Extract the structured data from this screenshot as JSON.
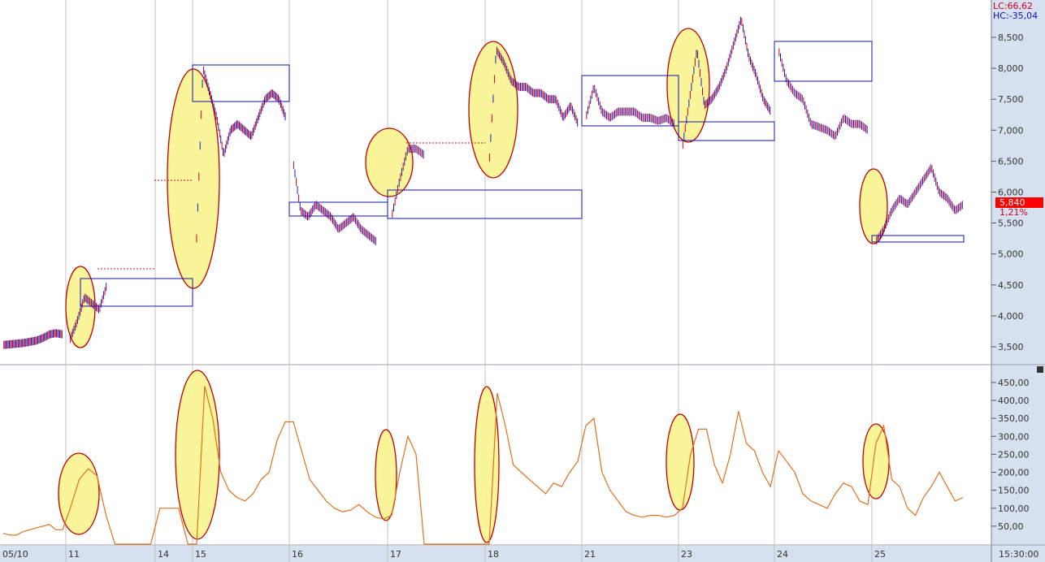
{
  "header": {
    "lc_label": "LC:66,62",
    "hc_label": "HC:-35,04"
  },
  "current": {
    "price": "5,840",
    "change": "1,21%",
    "time": "15:30:00"
  },
  "colors": {
    "price_up": "#d00020",
    "price_down": "#1020c0",
    "oscillator": "#e07020",
    "highlight_fill": "#fbf59a",
    "highlight_stroke": "#c00000",
    "box": "#1010b0",
    "axis_bg": "#d6e0ee",
    "current_bg": "#ff0000"
  },
  "chart_data": [
    {
      "type": "line",
      "panel": "price",
      "yticks": [
        "8,500",
        "8,000",
        "7,500",
        "7,000",
        "6,500",
        "6,000",
        "5,500",
        "5,000",
        "4,500",
        "4,000",
        "3,500"
      ],
      "ylim": [
        3500,
        8500
      ],
      "grid": "vertical day lines",
      "days": [
        {
          "date": "05/10",
          "values": [
            3530,
            3540,
            3550,
            3560,
            3580,
            3600,
            3640,
            3700,
            3720,
            3700
          ]
        },
        {
          "date": "11",
          "values": [
            3600,
            3900,
            4300,
            4200,
            4100,
            4500,
            null,
            null,
            null,
            null,
            null,
            null
          ]
        },
        {
          "date": "14",
          "values": [
            null,
            null,
            null,
            null
          ]
        },
        {
          "date": "15",
          "values": [
            5000,
            8000,
            7600,
            7200,
            6600,
            7000,
            7100,
            7000,
            6900,
            7200,
            7500,
            7600,
            7500,
            7200
          ]
        },
        {
          "date": "16",
          "values": [
            6500,
            5700,
            5600,
            5800,
            5700,
            5600,
            5400,
            5500,
            5600,
            5400,
            5300,
            5200,
            null
          ]
        },
        {
          "date": "17",
          "values": [
            5600,
            6200,
            6700,
            6700,
            6600,
            null,
            null,
            null,
            null,
            null,
            null,
            null
          ]
        },
        {
          "date": "18",
          "values": [
            6400,
            8300,
            8100,
            7800,
            7700,
            7700,
            7600,
            7600,
            7500,
            7500,
            7200,
            7400,
            7100
          ]
        },
        {
          "date": "21",
          "values": [
            7200,
            7700,
            7300,
            7200,
            7300,
            7300,
            7300,
            7200,
            7200,
            7150,
            7200,
            7100
          ]
        },
        {
          "date": "23",
          "values": [
            6700,
            7500,
            8300,
            7400,
            7500,
            7700,
            8000,
            8400,
            8800,
            8200,
            7900,
            7500,
            7300
          ]
        },
        {
          "date": "24",
          "values": [
            8300,
            7800,
            7600,
            7500,
            7100,
            7050,
            7000,
            6900,
            7200,
            7100,
            7100,
            7000
          ]
        },
        {
          "date": "25",
          "values": [
            5200,
            5400,
            5700,
            5900,
            5800,
            6000,
            6200,
            6400,
            6000,
            5900,
            5700,
            5800
          ]
        }
      ]
    },
    {
      "type": "line",
      "panel": "oscillator",
      "yticks": [
        "450,00",
        "400,00",
        "350,00",
        "300,00",
        "250,00",
        "200,00",
        "150,00",
        "100,00",
        "50,00"
      ],
      "ylim": [
        0,
        475
      ],
      "days": [
        {
          "date": "05/10",
          "values": [
            30,
            25,
            25,
            35,
            40,
            45,
            50,
            55,
            40,
            40
          ]
        },
        {
          "date": "11",
          "values": [
            100,
            180,
            210,
            190,
            80,
            0,
            0,
            0,
            0,
            0
          ]
        },
        {
          "date": "14",
          "values": [
            100,
            100,
            100,
            0
          ]
        },
        {
          "date": "15",
          "values": [
            0,
            440,
            350,
            200,
            150,
            130,
            120,
            140,
            180,
            200,
            290,
            340
          ]
        },
        {
          "date": "16",
          "values": [
            340,
            260,
            180,
            150,
            120,
            100,
            90,
            95,
            110,
            90,
            75,
            70
          ]
        },
        {
          "date": "17",
          "values": [
            80,
            200,
            300,
            250,
            0,
            0,
            0,
            0,
            0,
            0,
            0,
            0
          ]
        },
        {
          "date": "18",
          "values": [
            0,
            420,
            330,
            220,
            200,
            180,
            160,
            140,
            170,
            160,
            200,
            230
          ]
        },
        {
          "date": "21",
          "values": [
            330,
            350,
            200,
            150,
            120,
            90,
            80,
            75,
            80,
            80,
            75,
            80
          ]
        },
        {
          "date": "23",
          "values": [
            100,
            250,
            320,
            320,
            220,
            170,
            250,
            370,
            280,
            260,
            200,
            160
          ]
        },
        {
          "date": "24",
          "values": [
            260,
            230,
            200,
            140,
            120,
            110,
            100,
            140,
            170,
            160,
            120,
            110
          ]
        },
        {
          "date": "25",
          "values": [
            280,
            330,
            180,
            160,
            100,
            80,
            130,
            160,
            200,
            160,
            120,
            130
          ]
        }
      ]
    }
  ]
}
